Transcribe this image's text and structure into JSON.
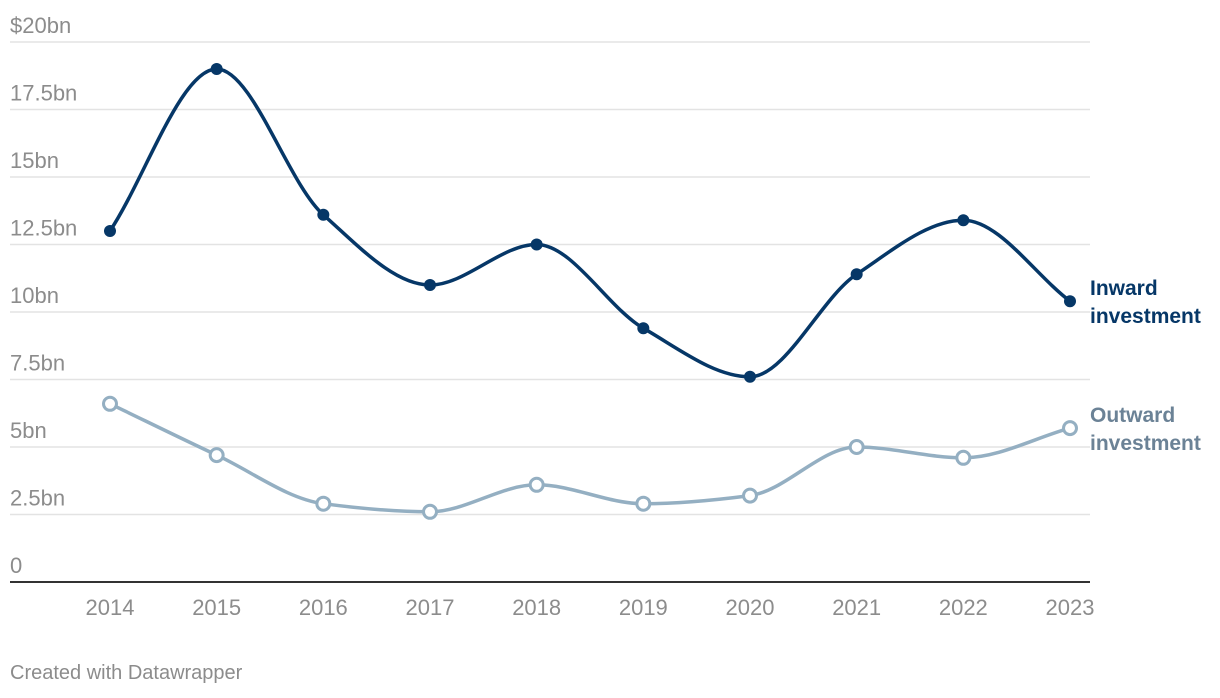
{
  "chart_data": {
    "type": "line",
    "title": "",
    "xlabel": "",
    "ylabel": "",
    "x": [
      2014,
      2015,
      2016,
      2017,
      2018,
      2019,
      2020,
      2021,
      2022,
      2023
    ],
    "ylim": [
      0,
      20
    ],
    "y_ticks": [
      {
        "value": 0,
        "label": "0"
      },
      {
        "value": 2.5,
        "label": "2.5bn"
      },
      {
        "value": 5,
        "label": "5bn"
      },
      {
        "value": 7.5,
        "label": "7.5bn"
      },
      {
        "value": 10,
        "label": "10bn"
      },
      {
        "value": 12.5,
        "label": "12.5bn"
      },
      {
        "value": 15,
        "label": "15bn"
      },
      {
        "value": 17.5,
        "label": "17.5bn"
      },
      {
        "value": 20,
        "label": "$20bn"
      }
    ],
    "grid": true,
    "series": [
      {
        "name": "Inward investment",
        "label_lines": [
          "Inward",
          "investment"
        ],
        "color": "#063767",
        "label_color": "#063767",
        "marker": "filled",
        "values": [
          13.0,
          19.0,
          13.6,
          11.0,
          12.5,
          9.4,
          7.6,
          11.4,
          13.4,
          10.4
        ]
      },
      {
        "name": "Outward investment",
        "label_lines": [
          "Outward",
          "investment"
        ],
        "color": "#94afc2",
        "label_color": "#6b8296",
        "marker": "hollow",
        "values": [
          6.6,
          4.7,
          2.9,
          2.6,
          3.6,
          2.9,
          3.2,
          5.0,
          4.6,
          5.7
        ]
      }
    ]
  },
  "footer": {
    "credit": "Created with Datawrapper"
  }
}
